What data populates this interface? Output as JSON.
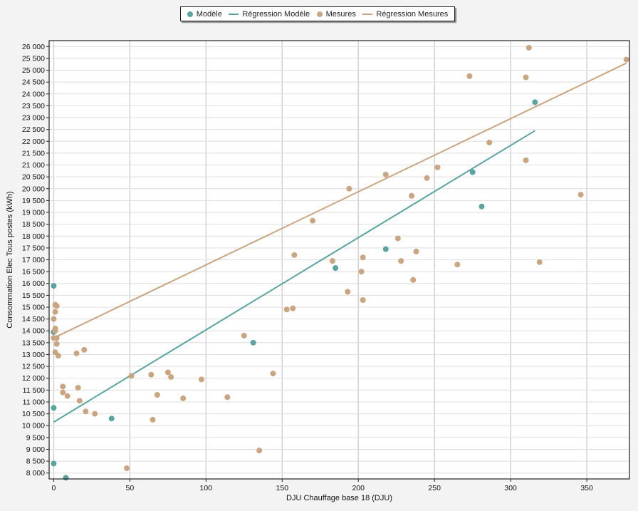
{
  "chart_data": {
    "type": "scatter",
    "xlabel": "DJU Chauffage base 18 (DJU)",
    "ylabel": "Consommation Elec Tous postes (kWh)",
    "xlim": [
      -3,
      378
    ],
    "ylim": [
      7750,
      26250
    ],
    "xticks": [
      0,
      50,
      100,
      150,
      200,
      250,
      300,
      350
    ],
    "yticks": [
      8000,
      8500,
      9000,
      9500,
      10000,
      10500,
      11000,
      11500,
      12000,
      12500,
      13000,
      13500,
      14000,
      14500,
      15000,
      15500,
      16000,
      16500,
      17000,
      17500,
      18000,
      18500,
      19000,
      19500,
      20000,
      20500,
      21000,
      21500,
      22000,
      22500,
      23000,
      23500,
      24000,
      24500,
      25000,
      25500,
      26000
    ],
    "ytick_labels": [
      "8 000",
      "8 500",
      "9 000",
      "9 500",
      "10 000",
      "10 500",
      "11 000",
      "11 500",
      "12 000",
      "12 500",
      "13 000",
      "13 500",
      "14 000",
      "14 500",
      "15 000",
      "15 500",
      "16 000",
      "16 500",
      "17 000",
      "17 500",
      "18 000",
      "18 500",
      "19 000",
      "19 500",
      "20 000",
      "20 500",
      "21 000",
      "21 500",
      "22 000",
      "22 500",
      "23 000",
      "23 500",
      "24 000",
      "24 500",
      "25 000",
      "25 500",
      "26 000"
    ],
    "grid": true,
    "legend_position": "top-center",
    "series": [
      {
        "name": "Modèle",
        "kind": "scatter",
        "color": "#5ba3a0",
        "points": [
          [
            0,
            15900
          ],
          [
            0,
            13950
          ],
          [
            0,
            10750
          ],
          [
            0,
            8400
          ],
          [
            8,
            7800
          ],
          [
            38,
            10300
          ],
          [
            131,
            13500
          ],
          [
            185,
            16650
          ],
          [
            218,
            17450
          ],
          [
            275,
            20700
          ],
          [
            281,
            19250
          ],
          [
            316,
            23650
          ]
        ]
      },
      {
        "name": "Régression Modèle",
        "kind": "line",
        "color": "#5ba3a0",
        "points": [
          [
            0,
            10150
          ],
          [
            316,
            22450
          ]
        ]
      },
      {
        "name": "Mesures",
        "kind": "scatter",
        "color": "#c9a581",
        "points": [
          [
            0,
            13700
          ],
          [
            0,
            14500
          ],
          [
            1,
            15100
          ],
          [
            1,
            14800
          ],
          [
            1,
            14100
          ],
          [
            1,
            14000
          ],
          [
            2,
            15050
          ],
          [
            2,
            13700
          ],
          [
            2,
            13450
          ],
          [
            1,
            13100
          ],
          [
            3,
            12950
          ],
          [
            6,
            11650
          ],
          [
            6,
            11400
          ],
          [
            9,
            11250
          ],
          [
            15,
            13050
          ],
          [
            16,
            11600
          ],
          [
            17,
            11050
          ],
          [
            20,
            13200
          ],
          [
            21,
            10600
          ],
          [
            27,
            10500
          ],
          [
            48,
            8200
          ],
          [
            51,
            12100
          ],
          [
            64,
            12150
          ],
          [
            65,
            10250
          ],
          [
            68,
            11300
          ],
          [
            75,
            12250
          ],
          [
            77,
            12050
          ],
          [
            85,
            11150
          ],
          [
            97,
            11950
          ],
          [
            114,
            11200
          ],
          [
            125,
            13800
          ],
          [
            135,
            8950
          ],
          [
            144,
            12200
          ],
          [
            153,
            14900
          ],
          [
            157,
            14950
          ],
          [
            158,
            17200
          ],
          [
            170,
            18650
          ],
          [
            183,
            16950
          ],
          [
            193,
            15650
          ],
          [
            194,
            20000
          ],
          [
            202,
            16500
          ],
          [
            203,
            17100
          ],
          [
            203,
            15300
          ],
          [
            218,
            20600
          ],
          [
            226,
            17900
          ],
          [
            228,
            16950
          ],
          [
            235,
            19700
          ],
          [
            236,
            16150
          ],
          [
            238,
            17350
          ],
          [
            245,
            20450
          ],
          [
            252,
            20900
          ],
          [
            265,
            16800
          ],
          [
            273,
            24750
          ],
          [
            286,
            21950
          ],
          [
            310,
            24700
          ],
          [
            310,
            21200
          ],
          [
            312,
            25950
          ],
          [
            319,
            16900
          ],
          [
            346,
            19750
          ],
          [
            376,
            25450
          ]
        ]
      },
      {
        "name": "Régression Mesures",
        "kind": "line",
        "color": "#c9a581",
        "points": [
          [
            0,
            13700
          ],
          [
            376,
            25300
          ]
        ]
      }
    ]
  }
}
